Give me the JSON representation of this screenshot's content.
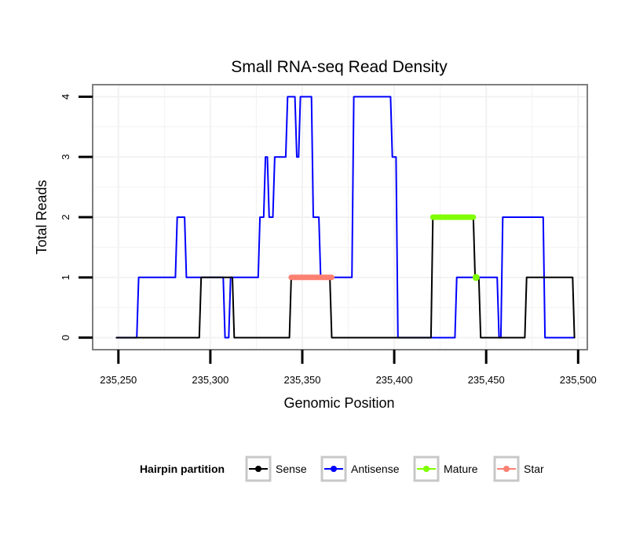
{
  "chart_data": {
    "type": "line",
    "title": "Small RNA-seq Read Density",
    "xlabel": "Genomic Position",
    "ylabel": "Total Reads",
    "xlim": [
      235236,
      235505
    ],
    "ylim": [
      -0.2,
      4.2
    ],
    "x_ticks": [
      235250,
      235300,
      235350,
      235400,
      235450,
      235500
    ],
    "x_tick_labels": [
      "235,250",
      "235,300",
      "235,350",
      "235,400",
      "235,450",
      "235,500"
    ],
    "y_ticks": [
      0,
      1,
      2,
      3,
      4
    ],
    "y_tick_labels": [
      "0",
      "1",
      "2",
      "3",
      "4"
    ],
    "grid": true,
    "legend": {
      "title": "Hairpin partition",
      "position": "bottom",
      "entries": [
        {
          "label": "Sense",
          "color": "#000000"
        },
        {
          "label": "Antisense",
          "color": "#0000ff"
        },
        {
          "label": "Mature",
          "color": "#7fff00"
        },
        {
          "label": "Star",
          "color": "#fa8072"
        }
      ]
    },
    "series": [
      {
        "name": "Antisense",
        "color": "#0000ff",
        "x": [
          235249,
          235260,
          235261,
          235281,
          235282,
          235286,
          235287,
          235307,
          235308,
          235310,
          235311,
          235326,
          235327,
          235329,
          235330,
          235331,
          235332,
          235334,
          235335,
          235341,
          235342,
          235346,
          235347,
          235348,
          235349,
          235355,
          235356,
          235359,
          235360,
          235363,
          235364,
          235377,
          235378,
          235398,
          235399,
          235401,
          235402,
          235405,
          235421,
          235433,
          235434,
          235444,
          235445,
          235456,
          235457,
          235458,
          235459,
          235481,
          235482,
          235498
        ],
        "y": [
          0,
          0,
          1,
          1,
          2,
          2,
          1,
          1,
          0,
          0,
          1,
          1,
          2,
          2,
          3,
          3,
          2,
          2,
          3,
          3,
          4,
          4,
          3,
          3,
          4,
          4,
          2,
          2,
          1,
          1,
          1,
          1,
          4,
          4,
          3,
          3,
          0,
          0,
          0,
          0,
          1,
          1,
          1,
          1,
          0,
          0,
          2,
          2,
          0,
          0
        ]
      },
      {
        "name": "Sense",
        "color": "#000000",
        "x": [
          235249,
          235294,
          235295,
          235312,
          235313,
          235343,
          235344,
          235365,
          235366,
          235420,
          235421,
          235443,
          235444,
          235446,
          235447,
          235471,
          235472,
          235497,
          235498
        ],
        "y": [
          0,
          0,
          1,
          1,
          0,
          0,
          1,
          1,
          0,
          0,
          2,
          2,
          1,
          1,
          0,
          0,
          1,
          1,
          0
        ]
      },
      {
        "name": "Mature",
        "color": "#7fff00",
        "x": [
          235421,
          235443
        ],
        "y": [
          2,
          2
        ],
        "point": {
          "x": 235444.5,
          "y": 1
        }
      },
      {
        "name": "Star",
        "color": "#fa8072",
        "x": [
          235344,
          235366
        ],
        "y": [
          1,
          1
        ]
      }
    ]
  }
}
